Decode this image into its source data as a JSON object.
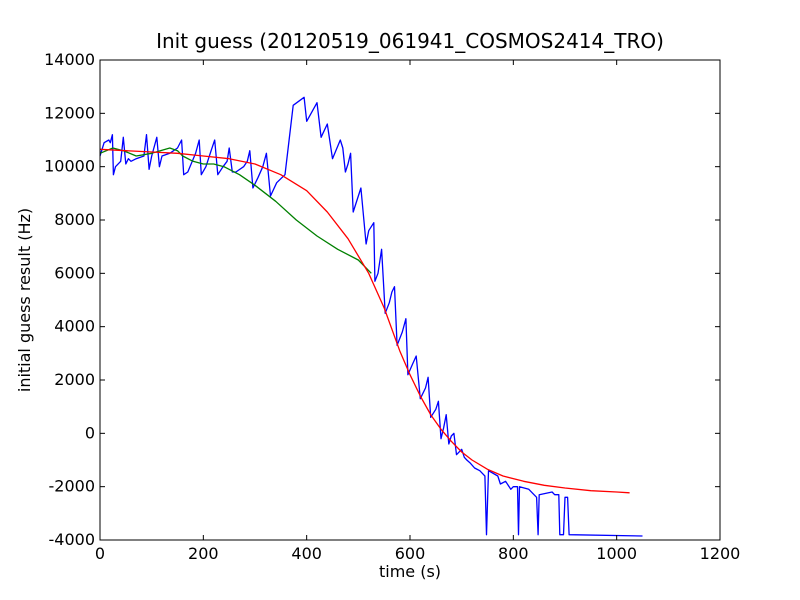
{
  "chart_data": {
    "type": "line",
    "title": "Init guess (20120519_061941_COSMOS2414_TRO)",
    "xlabel": "time (s)",
    "ylabel": "initial guess result (Hz)",
    "xlim": [
      0,
      1200
    ],
    "ylim": [
      -4000,
      14000
    ],
    "xticks": [
      0,
      200,
      400,
      600,
      800,
      1000,
      1200
    ],
    "yticks": [
      -4000,
      -2000,
      0,
      2000,
      4000,
      6000,
      8000,
      10000,
      12000,
      14000
    ],
    "grid": false,
    "legend": "none",
    "series": [
      {
        "color": "#0000ff",
        "points": [
          [
            0,
            10400
          ],
          [
            8,
            10900
          ],
          [
            17,
            11000
          ],
          [
            20,
            10900
          ],
          [
            24,
            11200
          ],
          [
            26,
            9700
          ],
          [
            30,
            10000
          ],
          [
            40,
            10200
          ],
          [
            45,
            11100
          ],
          [
            50,
            10100
          ],
          [
            55,
            10300
          ],
          [
            60,
            10200
          ],
          [
            70,
            10300
          ],
          [
            85,
            10400
          ],
          [
            90,
            11200
          ],
          [
            95,
            9900
          ],
          [
            100,
            10400
          ],
          [
            110,
            11100
          ],
          [
            115,
            10000
          ],
          [
            120,
            10400
          ],
          [
            135,
            10500
          ],
          [
            150,
            10700
          ],
          [
            158,
            11000
          ],
          [
            162,
            9700
          ],
          [
            170,
            9800
          ],
          [
            185,
            10500
          ],
          [
            192,
            11000
          ],
          [
            196,
            9700
          ],
          [
            205,
            10000
          ],
          [
            215,
            10600
          ],
          [
            222,
            11000
          ],
          [
            228,
            9700
          ],
          [
            238,
            10000
          ],
          [
            246,
            10200
          ],
          [
            250,
            10700
          ],
          [
            256,
            9800
          ],
          [
            263,
            9800
          ],
          [
            278,
            10000
          ],
          [
            285,
            10200
          ],
          [
            290,
            10600
          ],
          [
            296,
            9200
          ],
          [
            306,
            9600
          ],
          [
            315,
            10000
          ],
          [
            322,
            10500
          ],
          [
            330,
            8900
          ],
          [
            342,
            9400
          ],
          [
            358,
            9700
          ],
          [
            366,
            11000
          ],
          [
            374,
            12300
          ],
          [
            395,
            12600
          ],
          [
            400,
            11700
          ],
          [
            420,
            12400
          ],
          [
            428,
            11100
          ],
          [
            440,
            11600
          ],
          [
            450,
            10300
          ],
          [
            465,
            11000
          ],
          [
            470,
            10700
          ],
          [
            475,
            9800
          ],
          [
            480,
            10100
          ],
          [
            485,
            10500
          ],
          [
            490,
            8300
          ],
          [
            505,
            9200
          ],
          [
            515,
            7100
          ],
          [
            520,
            7600
          ],
          [
            530,
            7900
          ],
          [
            532,
            5700
          ],
          [
            538,
            6000
          ],
          [
            545,
            6900
          ],
          [
            552,
            4500
          ],
          [
            560,
            4900
          ],
          [
            565,
            5300
          ],
          [
            570,
            5500
          ],
          [
            575,
            3300
          ],
          [
            585,
            3800
          ],
          [
            592,
            4300
          ],
          [
            596,
            2200
          ],
          [
            605,
            2600
          ],
          [
            612,
            2900
          ],
          [
            620,
            1300
          ],
          [
            630,
            1700
          ],
          [
            635,
            2100
          ],
          [
            640,
            600
          ],
          [
            650,
            900
          ],
          [
            655,
            1200
          ],
          [
            660,
            -200
          ],
          [
            665,
            200
          ],
          [
            670,
            700
          ],
          [
            675,
            -400
          ],
          [
            680,
            -100
          ],
          [
            685,
            0
          ],
          [
            690,
            -800
          ],
          [
            700,
            -600
          ],
          [
            705,
            -900
          ],
          [
            710,
            -1000
          ],
          [
            716,
            -1100
          ],
          [
            725,
            -1300
          ],
          [
            735,
            -1400
          ],
          [
            740,
            -1500
          ],
          [
            745,
            -1600
          ],
          [
            748,
            -3800
          ],
          [
            752,
            -1400
          ],
          [
            770,
            -1600
          ],
          [
            775,
            -1900
          ],
          [
            785,
            -1800
          ],
          [
            795,
            -2100
          ],
          [
            800,
            -2000
          ],
          [
            808,
            -2000
          ],
          [
            810,
            -3800
          ],
          [
            812,
            -2000
          ],
          [
            830,
            -2100
          ],
          [
            845,
            -2400
          ],
          [
            848,
            -3800
          ],
          [
            850,
            -2300
          ],
          [
            875,
            -2200
          ],
          [
            880,
            -2300
          ],
          [
            888,
            -2300
          ],
          [
            890,
            -3800
          ],
          [
            897,
            -3800
          ],
          [
            900,
            -2400
          ],
          [
            905,
            -2400
          ],
          [
            908,
            -3800
          ],
          [
            1050,
            -3850
          ]
        ]
      },
      {
        "color": "#008000",
        "points": [
          [
            0,
            10500
          ],
          [
            25,
            10700
          ],
          [
            45,
            10600
          ],
          [
            70,
            10400
          ],
          [
            100,
            10500
          ],
          [
            135,
            10700
          ],
          [
            150,
            10600
          ],
          [
            160,
            10400
          ],
          [
            180,
            10200
          ],
          [
            200,
            10100
          ],
          [
            220,
            10100
          ],
          [
            240,
            10000
          ],
          [
            270,
            9700
          ],
          [
            300,
            9300
          ],
          [
            340,
            8700
          ],
          [
            380,
            8000
          ],
          [
            420,
            7400
          ],
          [
            460,
            6900
          ],
          [
            500,
            6500
          ],
          [
            525,
            6000
          ]
        ]
      },
      {
        "color": "#ff0000",
        "points": [
          [
            0,
            10650
          ],
          [
            50,
            10600
          ],
          [
            100,
            10550
          ],
          [
            150,
            10500
          ],
          [
            200,
            10400
          ],
          [
            250,
            10300
          ],
          [
            300,
            10100
          ],
          [
            350,
            9700
          ],
          [
            400,
            9100
          ],
          [
            440,
            8300
          ],
          [
            480,
            7300
          ],
          [
            520,
            6000
          ],
          [
            550,
            4700
          ],
          [
            580,
            3100
          ],
          [
            600,
            2200
          ],
          [
            620,
            1400
          ],
          [
            640,
            700
          ],
          [
            660,
            150
          ],
          [
            680,
            -300
          ],
          [
            700,
            -700
          ],
          [
            720,
            -1000
          ],
          [
            750,
            -1350
          ],
          [
            780,
            -1600
          ],
          [
            820,
            -1800
          ],
          [
            860,
            -1950
          ],
          [
            900,
            -2050
          ],
          [
            950,
            -2150
          ],
          [
            1000,
            -2200
          ],
          [
            1025,
            -2230
          ]
        ]
      }
    ]
  }
}
